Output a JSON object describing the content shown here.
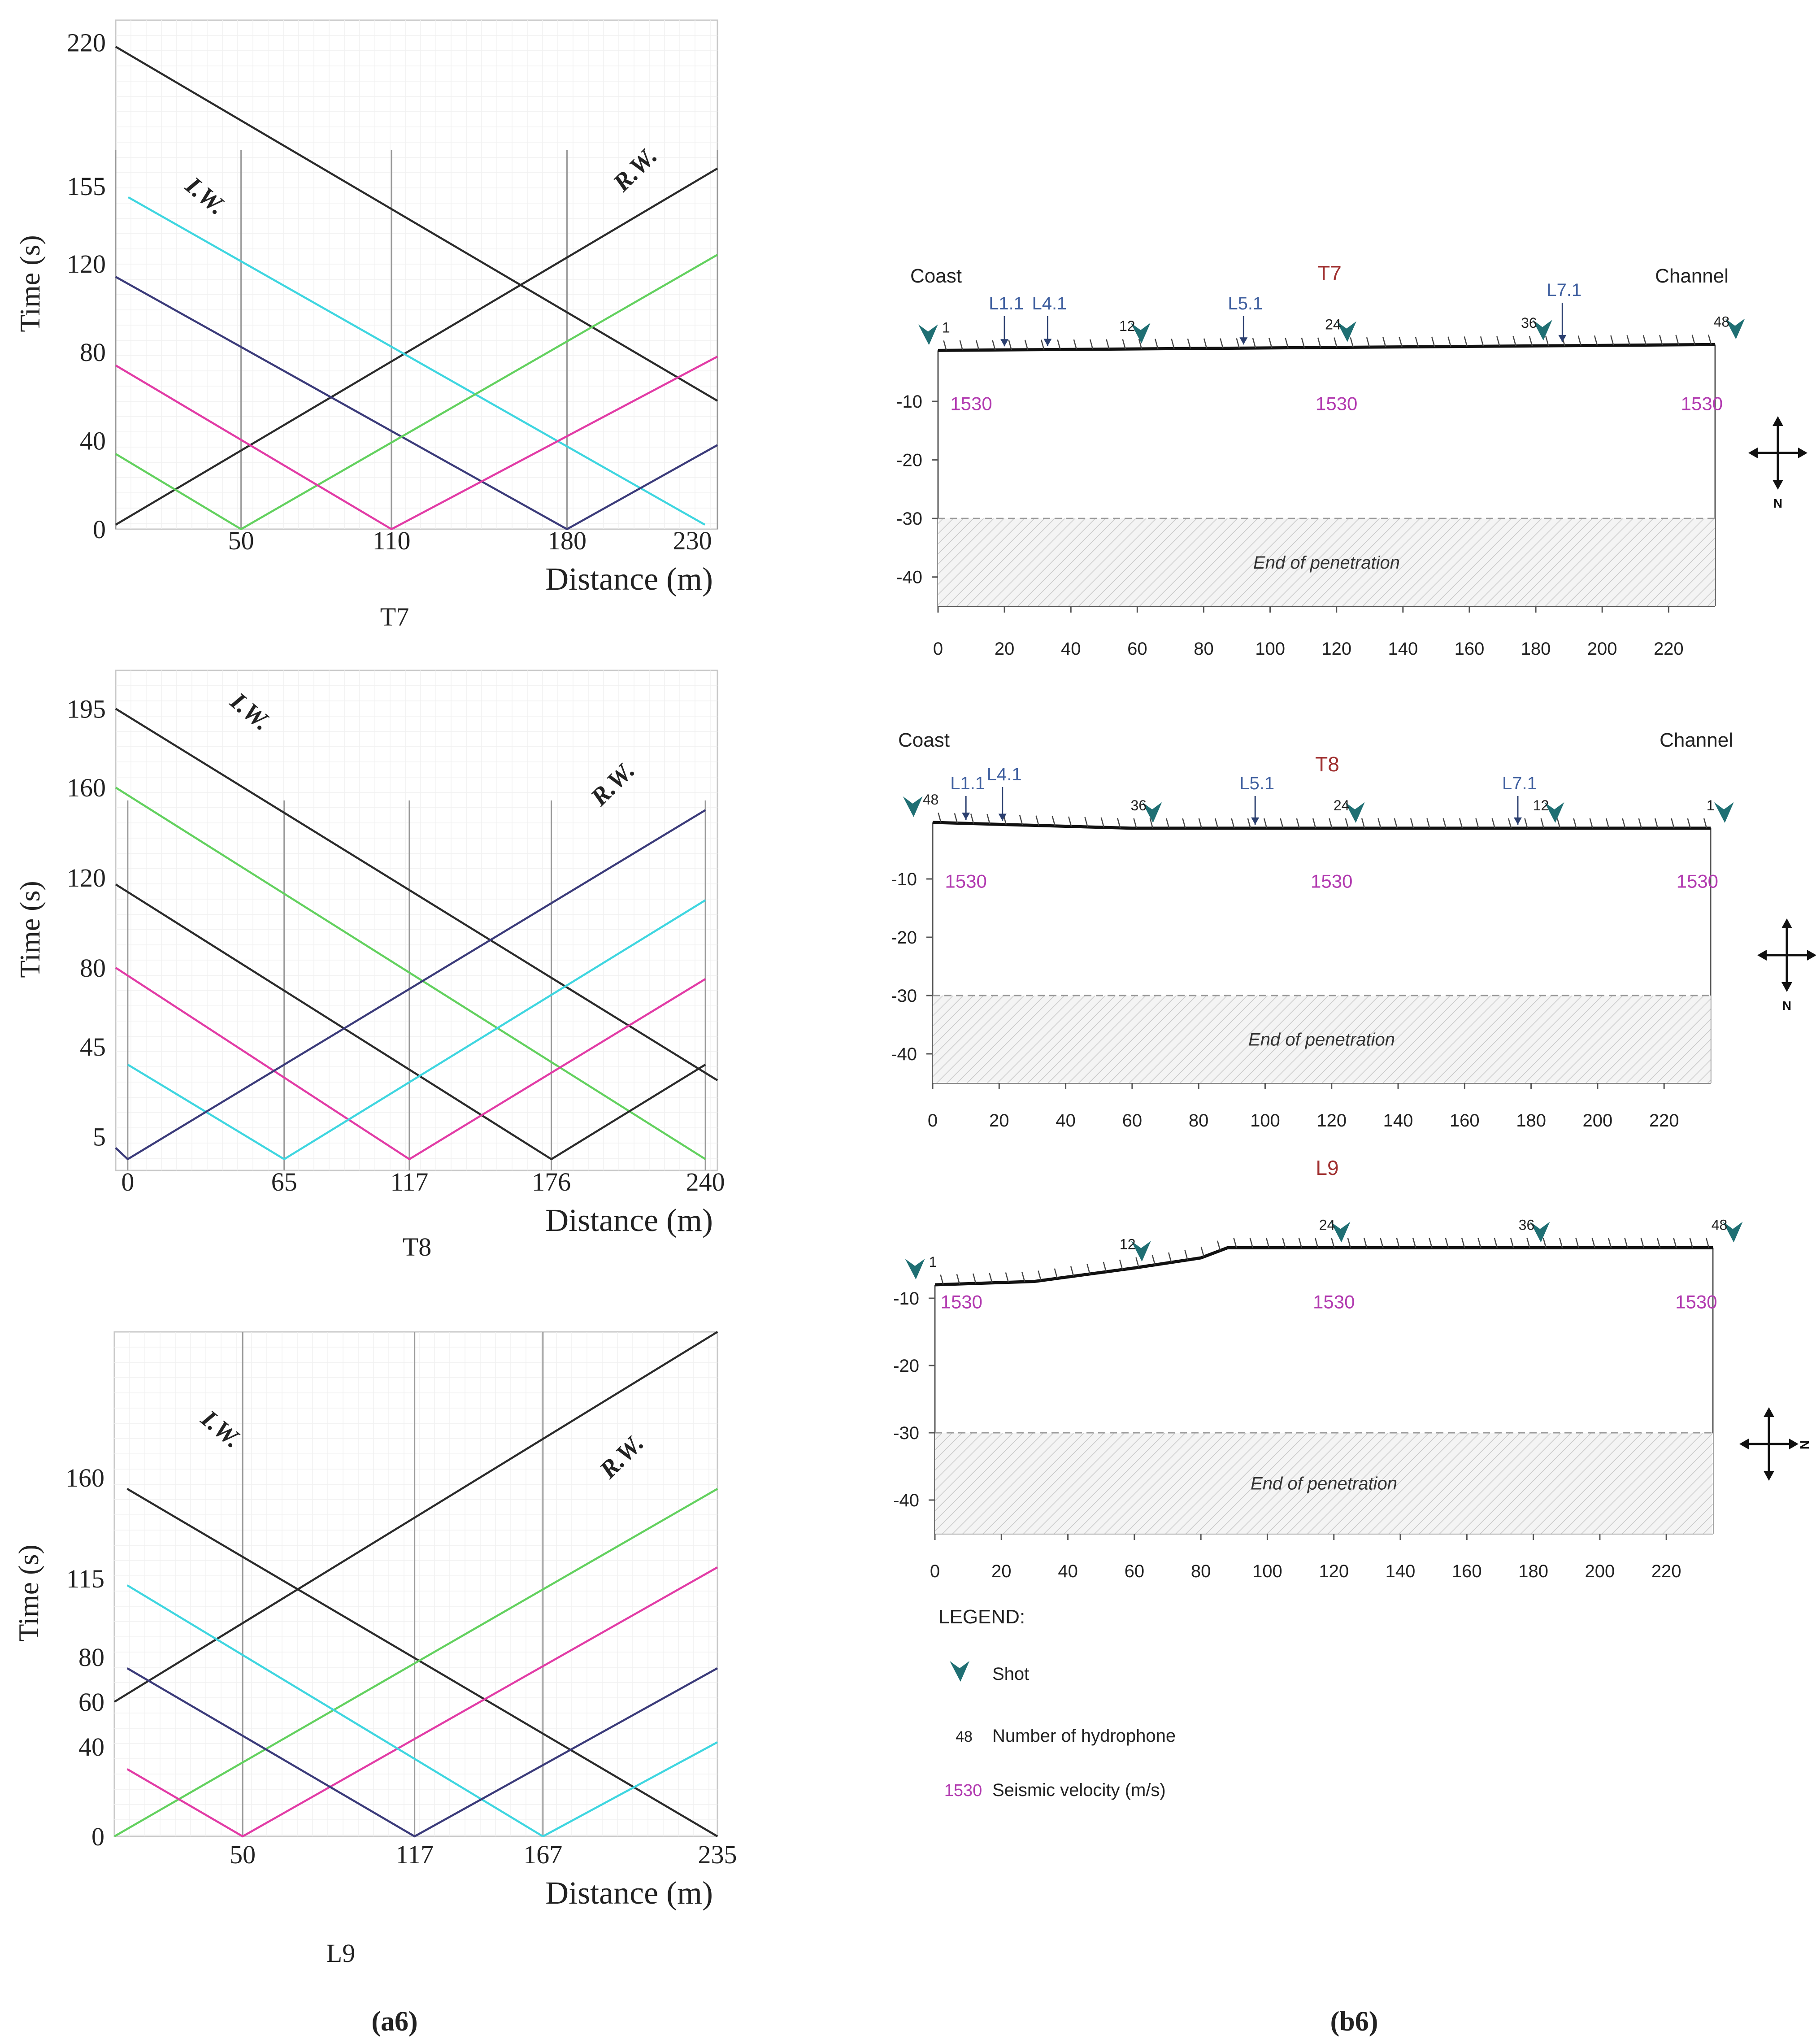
{
  "figure": {
    "panel_a_label": "a6",
    "panel_b_label": "b6"
  },
  "colors": {
    "black": "#2b2b2b",
    "cyan": "#3fd6e0",
    "green": "#63d15f",
    "magenta": "#e23ca6",
    "navy": "#3b3b7a",
    "teal": "#1f6f73",
    "blue_label": "#3f5f9f",
    "red_label": "#a03030",
    "velocity": "#b23ab0"
  },
  "chart_data": [
    {
      "type": "line",
      "title": "T7",
      "xlabel": "Distance (m)",
      "ylabel": "Time (s)",
      "xlim": [
        0,
        240
      ],
      "ylim": [
        0,
        230
      ],
      "xticks": [
        50,
        110,
        180,
        230
      ],
      "yticks": [
        0,
        40,
        80,
        120,
        155,
        220
      ],
      "vlines": [
        0,
        50,
        110,
        180,
        240
      ],
      "annotations": [
        "I.W.",
        "R.W."
      ],
      "series": [
        {
          "name": "black",
          "color": "black",
          "x": [
            0,
            240
          ],
          "y": [
            218,
            58
          ]
        },
        {
          "name": "rising-black",
          "color": "black",
          "x": [
            0,
            240
          ],
          "y": [
            2,
            163
          ]
        },
        {
          "name": "cyan",
          "color": "cyan",
          "x": [
            5,
            235
          ],
          "y": [
            150,
            2
          ]
        },
        {
          "name": "navy",
          "color": "navy",
          "x": [
            0,
            180,
            240
          ],
          "y": [
            114,
            0,
            38
          ]
        },
        {
          "name": "green",
          "color": "green",
          "x": [
            0,
            50,
            240
          ],
          "y": [
            34,
            0,
            124
          ]
        },
        {
          "name": "magenta",
          "color": "magenta",
          "x": [
            0,
            110,
            240
          ],
          "y": [
            74,
            0,
            78
          ]
        }
      ]
    },
    {
      "type": "line",
      "title": "T8",
      "xlabel": "Distance (m)",
      "ylabel": "Time (s)",
      "xlim": [
        -5,
        245
      ],
      "ylim": [
        -10,
        212
      ],
      "xticks": [
        0,
        65,
        117,
        176,
        240
      ],
      "yticks": [
        5,
        45,
        80,
        120,
        160,
        195
      ],
      "vlines": [
        0,
        65,
        117,
        176,
        240
      ],
      "annotations": [
        "I.W.",
        "R.W."
      ],
      "series": [
        {
          "name": "black-top",
          "color": "black",
          "x": [
            -5,
            245
          ],
          "y": [
            195,
            30
          ]
        },
        {
          "name": "green",
          "color": "green",
          "x": [
            -5,
            240
          ],
          "y": [
            160,
            -5
          ]
        },
        {
          "name": "black-mid",
          "color": "black",
          "x": [
            -5,
            176,
            240
          ],
          "y": [
            117,
            -5,
            37
          ]
        },
        {
          "name": "magenta",
          "color": "magenta",
          "x": [
            -5,
            117,
            240
          ],
          "y": [
            80,
            -5,
            75
          ]
        },
        {
          "name": "cyan",
          "color": "cyan",
          "x": [
            0,
            65,
            240
          ],
          "y": [
            37,
            -5,
            110
          ]
        },
        {
          "name": "navy",
          "color": "navy",
          "x": [
            -5,
            0,
            240
          ],
          "y": [
            0,
            -5,
            150
          ]
        }
      ]
    },
    {
      "type": "line",
      "title": "L9",
      "xlabel": "Distance (m)",
      "ylabel": "Time (s)",
      "xlim": [
        0,
        235
      ],
      "ylim": [
        0,
        225
      ],
      "xticks": [
        50,
        117,
        167,
        235
      ],
      "yticks": [
        0,
        40,
        60,
        80,
        115,
        160
      ],
      "vlines": [
        50,
        117,
        167
      ],
      "annotations": [
        "I.W.",
        "R.W."
      ],
      "series": [
        {
          "name": "black-rising",
          "color": "black",
          "x": [
            0,
            235
          ],
          "y": [
            60,
            225
          ]
        },
        {
          "name": "black-falling",
          "color": "black",
          "x": [
            5,
            235
          ],
          "y": [
            155,
            0
          ]
        },
        {
          "name": "green",
          "color": "green",
          "x": [
            0,
            235
          ],
          "y": [
            0,
            155
          ]
        },
        {
          "name": "magenta",
          "color": "magenta",
          "x": [
            5,
            50,
            235
          ],
          "y": [
            30,
            0,
            120
          ]
        },
        {
          "name": "cyan-a",
          "color": "cyan",
          "x": [
            5,
            167
          ],
          "y": [
            112,
            0
          ]
        },
        {
          "name": "cyan-b",
          "color": "cyan",
          "x": [
            167,
            235
          ],
          "y": [
            0,
            42
          ]
        },
        {
          "name": "navy",
          "color": "navy",
          "x": [
            5,
            117,
            235
          ],
          "y": [
            75,
            0,
            75
          ]
        }
      ]
    }
  ],
  "profiles": [
    {
      "name": "T7",
      "left_label": "Coast",
      "right_label": "Channel",
      "xticks": [
        0,
        20,
        40,
        60,
        80,
        100,
        120,
        140,
        160,
        180,
        200,
        220
      ],
      "yticks": [
        -10,
        -20,
        -30,
        -40
      ],
      "end_label": "End of penetration",
      "velocity": "1530",
      "velocity_x": [
        10,
        120,
        230
      ],
      "compass_dir": "N",
      "surface": {
        "x": [
          0,
          234
        ],
        "y": [
          -1.3,
          -0.3
        ]
      },
      "shots": [
        {
          "x": -3,
          "label": "1",
          "label_dx": 1
        },
        {
          "x": 61,
          "label": "12",
          "label_dx": -1
        },
        {
          "x": 123,
          "label": "24",
          "label_dx": -1
        },
        {
          "x": 182,
          "label": "36",
          "label_dx": -1
        },
        {
          "x": 240,
          "label": "48",
          "label_dx": -1
        }
      ],
      "markers": [
        {
          "x": 20,
          "label": "L1.1",
          "above": 4
        },
        {
          "x": 33,
          "label": "L4.1",
          "above": 4
        },
        {
          "x": 92,
          "label": "L5.1",
          "above": 4
        },
        {
          "x": 188,
          "label": "L7.1",
          "above": 5.5
        }
      ]
    },
    {
      "name": "T8",
      "left_label": "Coast",
      "right_label": "Channel",
      "xticks": [
        0,
        20,
        40,
        60,
        80,
        100,
        120,
        140,
        160,
        180,
        200,
        220
      ],
      "yticks": [
        -10,
        -20,
        -30,
        -40
      ],
      "end_label": "End of penetration",
      "velocity": "1530",
      "velocity_x": [
        10,
        120,
        230
      ],
      "compass_dir": "N",
      "surface": {
        "x": [
          0,
          60,
          234
        ],
        "y": [
          -0.3,
          -1.3,
          -1.3
        ]
      },
      "shots": [
        {
          "x": -6,
          "label": "48",
          "label_dx": 1
        },
        {
          "x": 66,
          "label": "36",
          "label_dx": -1
        },
        {
          "x": 127,
          "label": "24",
          "label_dx": -1
        },
        {
          "x": 187,
          "label": "12",
          "label_dx": -1
        },
        {
          "x": 238,
          "label": "1",
          "label_dx": -1
        }
      ],
      "markers": [
        {
          "x": 10,
          "label": "L1.1",
          "above": 4.5
        },
        {
          "x": 21,
          "label": "L4.1",
          "above": 5.2
        },
        {
          "x": 97,
          "label": "L5.1",
          "above": 4.5
        },
        {
          "x": 176,
          "label": "L7.1",
          "above": 4.5
        }
      ]
    },
    {
      "name": "L9",
      "left_label": "",
      "right_label": "",
      "xticks": [
        0,
        20,
        40,
        60,
        80,
        100,
        120,
        140,
        160,
        180,
        200,
        220
      ],
      "yticks": [
        -10,
        -20,
        -30,
        -40
      ],
      "end_label": "End of penetration",
      "velocity": "1530",
      "velocity_x": [
        8,
        120,
        229
      ],
      "compass_dir": "N",
      "surface": {
        "x": [
          0,
          30,
          60,
          80,
          88,
          234
        ],
        "y": [
          -8,
          -7.5,
          -5.5,
          -4,
          -2.5,
          -2.5
        ]
      },
      "shots": [
        {
          "x": -6,
          "label": "1",
          "label_dx": 1
        },
        {
          "x": 62,
          "label": "12",
          "label_dx": -1
        },
        {
          "x": 122,
          "label": "24",
          "label_dx": -1
        },
        {
          "x": 182,
          "label": "36",
          "label_dx": -1
        },
        {
          "x": 240,
          "label": "48",
          "label_dx": -1
        }
      ],
      "markers": []
    }
  ],
  "legend": {
    "title": "LEGEND:",
    "shot_label": "Shot",
    "hydrophone_number": "48",
    "hydrophone_label": "Number of hydrophone",
    "velocity_value": "1530",
    "velocity_label": "Seismic velocity (m/s)"
  }
}
